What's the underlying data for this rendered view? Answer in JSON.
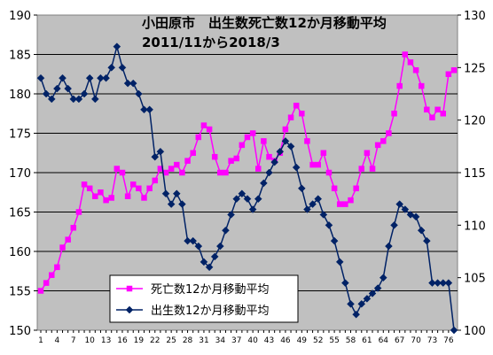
{
  "chart_data": {
    "type": "line",
    "title": "小田原市　出生数死亡数12か月移動平均",
    "subtitle": "2011/11から2018/3",
    "x": [
      1,
      2,
      3,
      4,
      5,
      6,
      7,
      8,
      9,
      10,
      11,
      12,
      13,
      14,
      15,
      16,
      17,
      18,
      19,
      20,
      21,
      22,
      23,
      24,
      25,
      26,
      27,
      28,
      29,
      30,
      31,
      32,
      33,
      34,
      35,
      36,
      37,
      38,
      39,
      40,
      41,
      42,
      43,
      44,
      45,
      46,
      47,
      48,
      49,
      50,
      51,
      52,
      53,
      54,
      55,
      56,
      57,
      58,
      59,
      60,
      61,
      62,
      63,
      64,
      65,
      66,
      67,
      68,
      69,
      70,
      71,
      72,
      73,
      74,
      75,
      76,
      77
    ],
    "x_tick_labels": [
      "1",
      "4",
      "7",
      "10",
      "13",
      "16",
      "19",
      "22",
      "25",
      "28",
      "31",
      "34",
      "37",
      "40",
      "43",
      "46",
      "49",
      "52",
      "55",
      "58",
      "61",
      "64",
      "67",
      "70",
      "73",
      "76"
    ],
    "left_axis": {
      "ylim": [
        150,
        190
      ],
      "ticks": [
        150,
        155,
        160,
        165,
        170,
        175,
        180,
        185,
        190
      ]
    },
    "right_axis": {
      "ylim": [
        100,
        130
      ],
      "ticks": [
        100,
        105,
        110,
        115,
        120,
        125,
        130
      ]
    },
    "grid": true,
    "legend_position": "bottom-center",
    "series": [
      {
        "name": "死亡数12か月移動平均",
        "axis": "left",
        "color": "#ff00ff",
        "marker": "square",
        "values": [
          155.0,
          156.0,
          157.0,
          158.0,
          160.5,
          161.5,
          163.0,
          165.0,
          168.5,
          168.0,
          167.0,
          167.5,
          166.5,
          166.8,
          170.5,
          170.0,
          167.0,
          168.5,
          168.0,
          166.8,
          168.0,
          169.0,
          170.5,
          170.0,
          170.5,
          171.0,
          170.0,
          171.5,
          172.5,
          174.5,
          176.0,
          175.5,
          172.0,
          170.0,
          170.0,
          171.5,
          171.8,
          173.5,
          174.5,
          175.0,
          170.5,
          174.0,
          172.0,
          171.5,
          172.5,
          175.5,
          177.0,
          178.5,
          177.5,
          174.0,
          171.0,
          171.0,
          172.5,
          170.0,
          168.0,
          166.0,
          166.0,
          166.5,
          168.0,
          170.5,
          172.5,
          170.5,
          173.5,
          174.0,
          175.0,
          177.5,
          181.0,
          185.0,
          184.0,
          183.0,
          181.0,
          178.0,
          177.0,
          178.0,
          177.5,
          182.5,
          183.0
        ]
      },
      {
        "name": "出生数12か月移動平均",
        "axis": "right",
        "color": "#002266",
        "marker": "diamond",
        "values": [
          124.0,
          122.5,
          122.0,
          123.0,
          124.0,
          123.0,
          122.0,
          122.0,
          122.5,
          124.0,
          122.0,
          124.0,
          124.0,
          125.0,
          127.0,
          125.0,
          123.5,
          123.5,
          122.5,
          121.0,
          121.0,
          116.5,
          117.0,
          113.0,
          112.0,
          113.0,
          112.0,
          108.5,
          108.5,
          108.0,
          106.5,
          106.0,
          107.0,
          108.0,
          109.5,
          111.0,
          112.5,
          113.0,
          112.5,
          111.5,
          112.5,
          114.0,
          115.0,
          116.0,
          117.0,
          118.0,
          117.5,
          115.5,
          113.5,
          111.5,
          112.0,
          112.5,
          111.0,
          110.0,
          108.5,
          106.5,
          104.5,
          102.5,
          101.5,
          102.5,
          103.0,
          103.5,
          104.0,
          105.0,
          108.0,
          110.0,
          112.0,
          111.5,
          111.0,
          110.8,
          109.5,
          108.5,
          104.5,
          104.5,
          104.5,
          104.5,
          100.0
        ]
      }
    ]
  }
}
